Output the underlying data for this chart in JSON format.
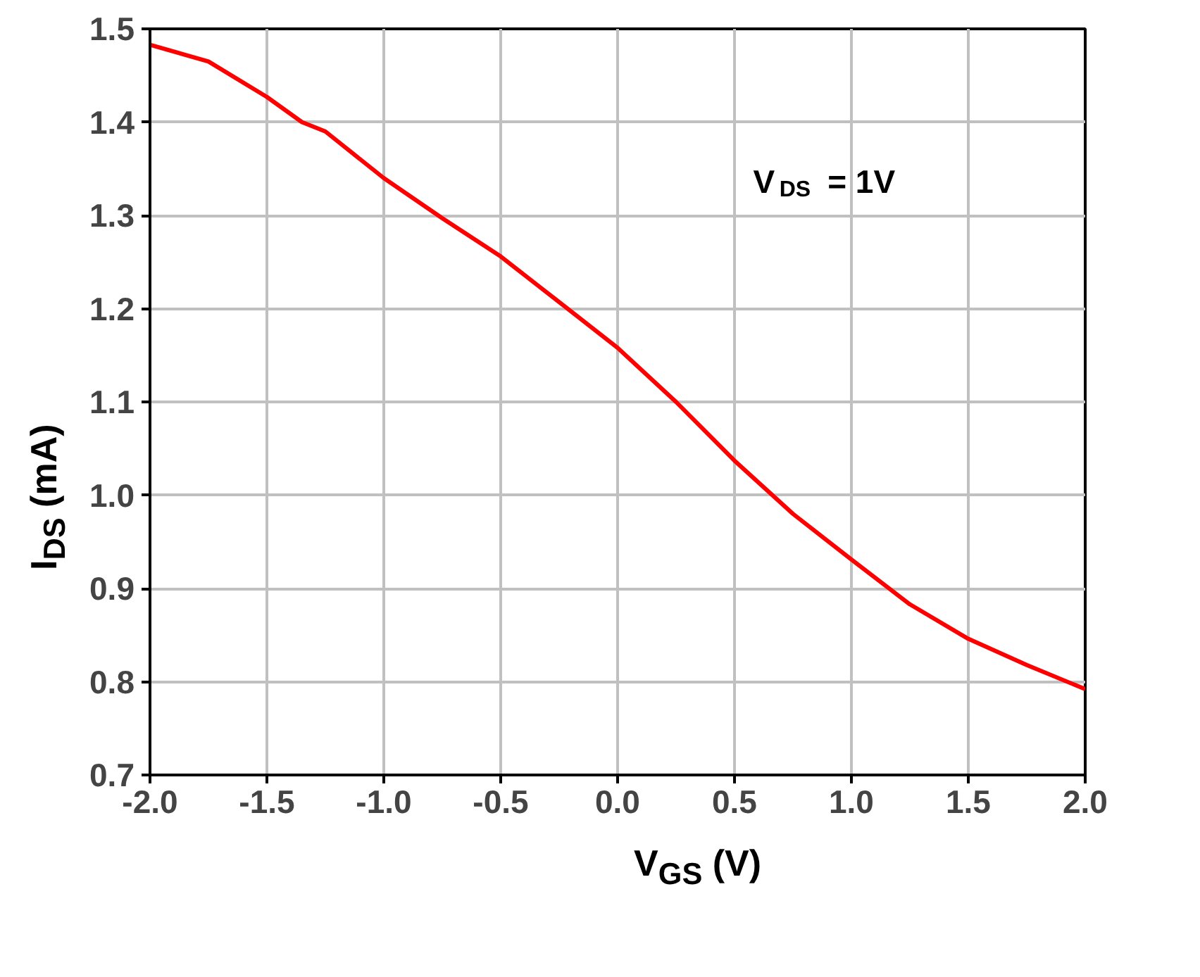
{
  "chart_data": {
    "type": "line",
    "xlabel": "V$_{GS}$ (V)",
    "ylabel": "I$_{DS}$ (mA)",
    "annotations": [
      "V$_{DS}$ = 1V"
    ],
    "x": [
      -2.0,
      -1.75,
      -1.5,
      -1.35,
      -1.25,
      -1.0,
      -0.75,
      -0.5,
      -0.25,
      0.0,
      0.25,
      0.5,
      0.75,
      1.0,
      1.25,
      1.5,
      1.75,
      2.0
    ],
    "series": [
      {
        "color": "#ff0000",
        "values": [
          1.483,
          1.465,
          1.427,
          1.4,
          1.39,
          1.34,
          1.297,
          1.256,
          1.207,
          1.158,
          1.1,
          1.037,
          0.98,
          0.931,
          0.883,
          0.846,
          0.818,
          0.792
        ]
      }
    ],
    "xlim": [
      -2.0,
      2.0
    ],
    "ylim": [
      0.7,
      1.5
    ],
    "xticks": [
      {
        "value": -2.0,
        "label": "-2.0"
      },
      {
        "value": -1.5,
        "label": "-1.5"
      },
      {
        "value": -1.0,
        "label": "-1.0"
      },
      {
        "value": -0.5,
        "label": "-0.5"
      },
      {
        "value": 0.0,
        "label": "0.0"
      },
      {
        "value": 0.5,
        "label": "0.5"
      },
      {
        "value": 1.0,
        "label": "1.0"
      },
      {
        "value": 1.5,
        "label": "1.5"
      },
      {
        "value": 2.0,
        "label": "2.0"
      }
    ],
    "yticks": [
      0.7,
      0.8,
      0.9,
      {
        "value": 1.0,
        "label": "1.0"
      },
      1.1,
      1.2,
      1.3,
      1.4,
      1.5
    ],
    "grid": true,
    "marker": "none",
    "line_style": "solid"
  }
}
